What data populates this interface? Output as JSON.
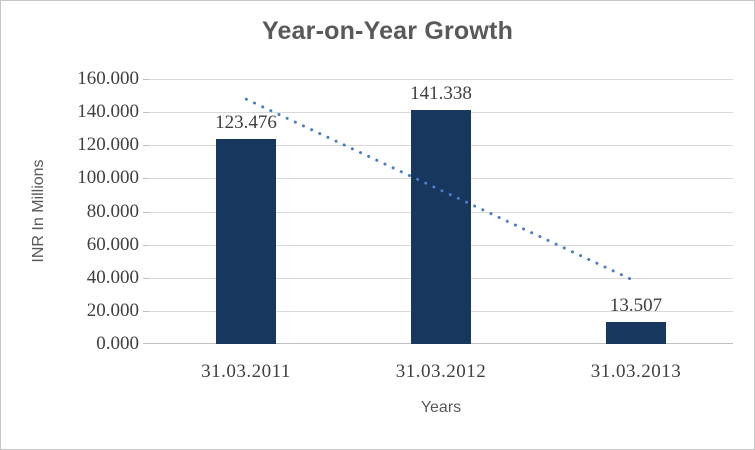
{
  "chart_data": {
    "type": "bar",
    "title": "Year-on-Year Growth",
    "xlabel": "Years",
    "ylabel": "INR In Millions",
    "categories": [
      "31.03.2011",
      "31.03.2012",
      "31.03.2013"
    ],
    "values": [
      123.476,
      141.338,
      13.507
    ],
    "data_labels": [
      "123.476",
      "141.338",
      "13.507"
    ],
    "ylim": [
      0,
      160
    ],
    "ytick_step": 20,
    "ytick_labels": [
      "0.000",
      "20.000",
      "40.000",
      "60.000",
      "80.000",
      "100.000",
      "120.000",
      "140.000",
      "160.000"
    ],
    "grid": true,
    "legend": false,
    "trendline": {
      "type": "linear",
      "style": "dotted",
      "start_value": 147.8,
      "end_value": 37.8,
      "color": "#4a7ec4"
    },
    "colors": {
      "bar": "#17375e",
      "gridline": "#d9d9d9",
      "axis_line": "#bfbfbf",
      "title_text": "#595959",
      "label_text": "#3f3f3f"
    }
  }
}
